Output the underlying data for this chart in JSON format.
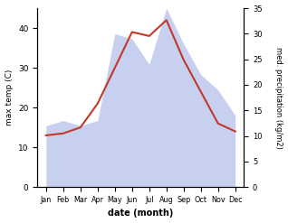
{
  "months": [
    "Jan",
    "Feb",
    "Mar",
    "Apr",
    "May",
    "Jun",
    "Jul",
    "Aug",
    "Sep",
    "Oct",
    "Nov",
    "Dec"
  ],
  "month_x": [
    0,
    1,
    2,
    3,
    4,
    5,
    6,
    7,
    8,
    9,
    10,
    11
  ],
  "temperature": [
    13,
    13.5,
    15,
    21,
    30,
    39,
    38,
    42,
    32,
    24,
    16,
    14
  ],
  "precipitation": [
    12,
    13,
    12,
    13,
    30,
    29,
    24,
    35,
    28,
    22,
    19,
    14
  ],
  "temp_color": "#c0392b",
  "precip_fill_color": "#c8d0f0",
  "background_color": "#ffffff",
  "xlabel": "date (month)",
  "ylabel_left": "max temp (C)",
  "ylabel_right": "med. precipitation (kg/m2)",
  "ylim_left": [
    0,
    45
  ],
  "ylim_right": [
    0,
    35
  ],
  "yticks_left": [
    0,
    10,
    20,
    30,
    40
  ],
  "yticks_right": [
    0,
    5,
    10,
    15,
    20,
    25,
    30,
    35
  ],
  "figsize": [
    3.18,
    2.47
  ],
  "dpi": 100
}
